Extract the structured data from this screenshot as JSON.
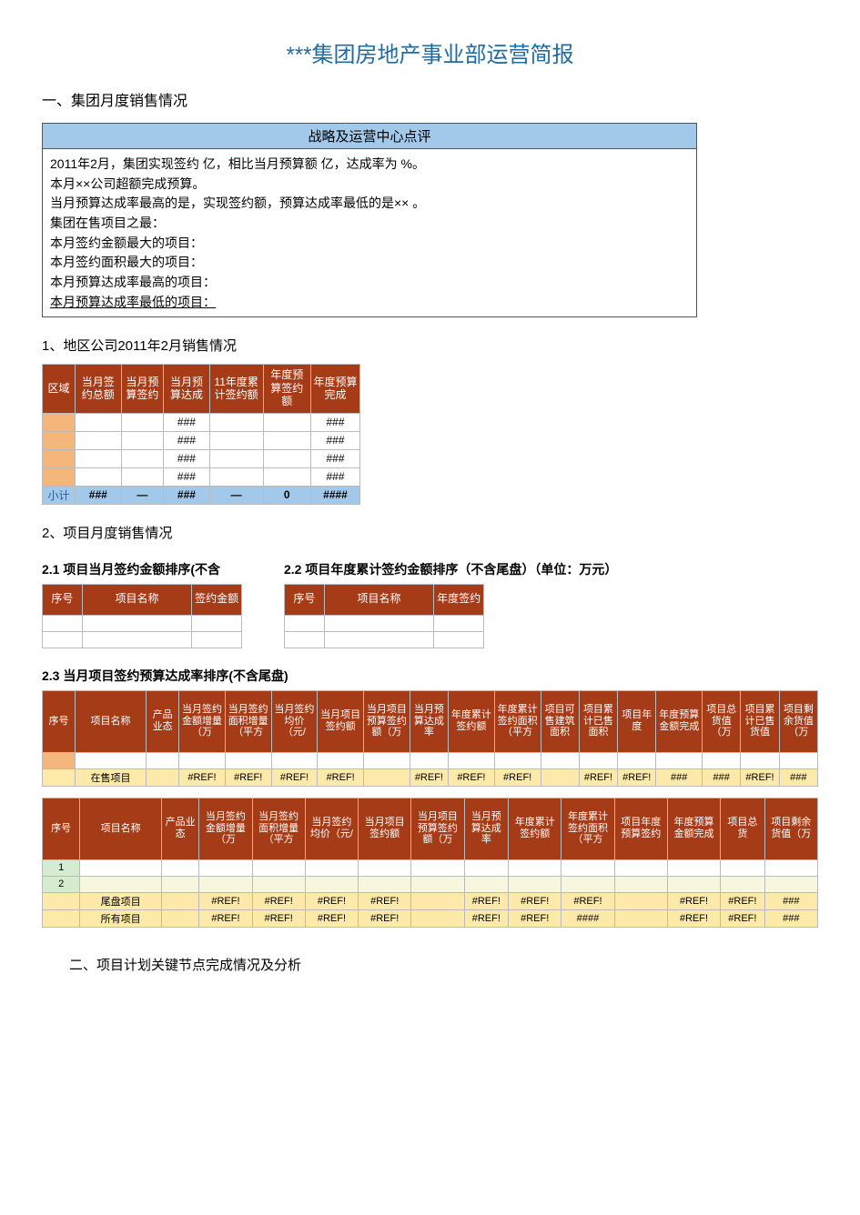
{
  "title": "***集团房地产事业部运营简报",
  "section1": "一、集团月度销售情况",
  "comment": {
    "header": "战略及运营中心点评",
    "lines": [
      "2011年2月，集团实现签约 亿，相比当月预算额 亿，达成率为 %。",
      "本月××公司超额完成预算。",
      "当月预算达成率最高的是，实现签约额，预算达成率最低的是×× 。",
      "集团在售项目之最：",
      "本月签约金额最大的项目：",
      "本月签约面积最大的项目：",
      "本月预算达成率最高的项目：",
      "本月预算达成率最低的项目："
    ]
  },
  "sub1": "1、地区公司2011年2月销售情况",
  "region": {
    "headers": [
      "区域",
      "当月签约总额",
      "当月预算签约",
      "当月预算达成",
      "11年度累计签约额",
      "年度预算签约额",
      "年度预算完成"
    ],
    "rows": [
      [
        "",
        "",
        "",
        "###",
        "",
        "",
        "###"
      ],
      [
        "",
        "",
        "",
        "###",
        "",
        "",
        "###"
      ],
      [
        "",
        "",
        "",
        "###",
        "",
        "",
        "###"
      ],
      [
        "",
        "",
        "",
        "###",
        "",
        "",
        "###"
      ]
    ],
    "footer": [
      "小计",
      "###",
      "—",
      "###",
      "—",
      "0",
      "####"
    ]
  },
  "sub2": "2、项目月度销售情况",
  "t21": {
    "title": "2.1 项目当月签约金额排序(不含",
    "headers": [
      "序号",
      "项目名称",
      "签约金额"
    ],
    "rows": [
      [
        "",
        "",
        ""
      ],
      [
        "",
        "",
        ""
      ]
    ]
  },
  "t22": {
    "title": "2.2 项目年度累计签约金额排序（不含尾盘）（单位：万元）",
    "headers": [
      "序号",
      "项目名称",
      "年度签约"
    ],
    "rows": [
      [
        "",
        "",
        ""
      ],
      [
        "",
        "",
        ""
      ]
    ]
  },
  "t23": {
    "title": "2.3 当月项目签约预算达成率排序(不含尾盘)",
    "headersA": [
      "序号",
      "项目名称",
      "产品业态",
      "当月签约金额增量（万",
      "当月签约面积增量（平方",
      "当月签约均价（元/",
      "当月项目签约额",
      "当月项目预算签约额（万",
      "当月预算达成率",
      "年度累计签约额",
      "年度累计签约面积（平方",
      "项目可售建筑面积",
      "项目累计已售面积",
      "项目年度",
      "年度预算金额完成",
      "项目总货值（万",
      "项目累计已售货值",
      "项目剩余货值（万"
    ],
    "blank_row_a": [
      "",
      "",
      "",
      "",
      "",
      "",
      "",
      "",
      "",
      "",
      "",
      "",
      "",
      "",
      "",
      "",
      "",
      ""
    ],
    "sumA": [
      "",
      "在售项目",
      "",
      "#REF!",
      "#REF!",
      "#REF!",
      "#REF!",
      "",
      "#REF!",
      "#REF!",
      "#REF!",
      "",
      "#REF!",
      "#REF!",
      "###",
      "###",
      "#REF!",
      "###",
      "###",
      "###"
    ],
    "headersB": [
      "序号",
      "项目名称",
      "产品业态",
      "当月签约金额增量（万",
      "当月签约面积增量（平方",
      "当月签约均价（元/",
      "当月项目签约额",
      "当月项目预算签约额（万",
      "当月预算达成率",
      "年度累计签约额",
      "年度累计签约面积（平方",
      "项目年度预算签约",
      "年度预算金额完成",
      "项目总货",
      "项目剩余货值（万"
    ],
    "idx_rows": [
      "1",
      "2"
    ],
    "sumB": [
      "",
      "尾盘项目",
      "",
      "#REF!",
      "#REF!",
      "#REF!",
      "#REF!",
      "",
      "#REF!",
      "#REF!",
      "#REF!",
      "",
      "#REF!",
      "#REF!",
      "###",
      "###",
      "#REF!"
    ],
    "sumC": [
      "",
      "所有项目",
      "",
      "#REF!",
      "#REF!",
      "#REF!",
      "#REF!",
      "",
      "#REF!",
      "#REF!",
      "####",
      "",
      "#REF!",
      "#REF!",
      "###",
      "###",
      "#REF!"
    ]
  },
  "footer": "二、项目计划关键节点完成情况及分析",
  "colors": {
    "title": "#1f6ba3",
    "header_bg": "#a63b17",
    "blue_bg": "#a2c8ea",
    "orange_bg": "#f4b67a",
    "yellow_bg": "#fde9a9"
  }
}
